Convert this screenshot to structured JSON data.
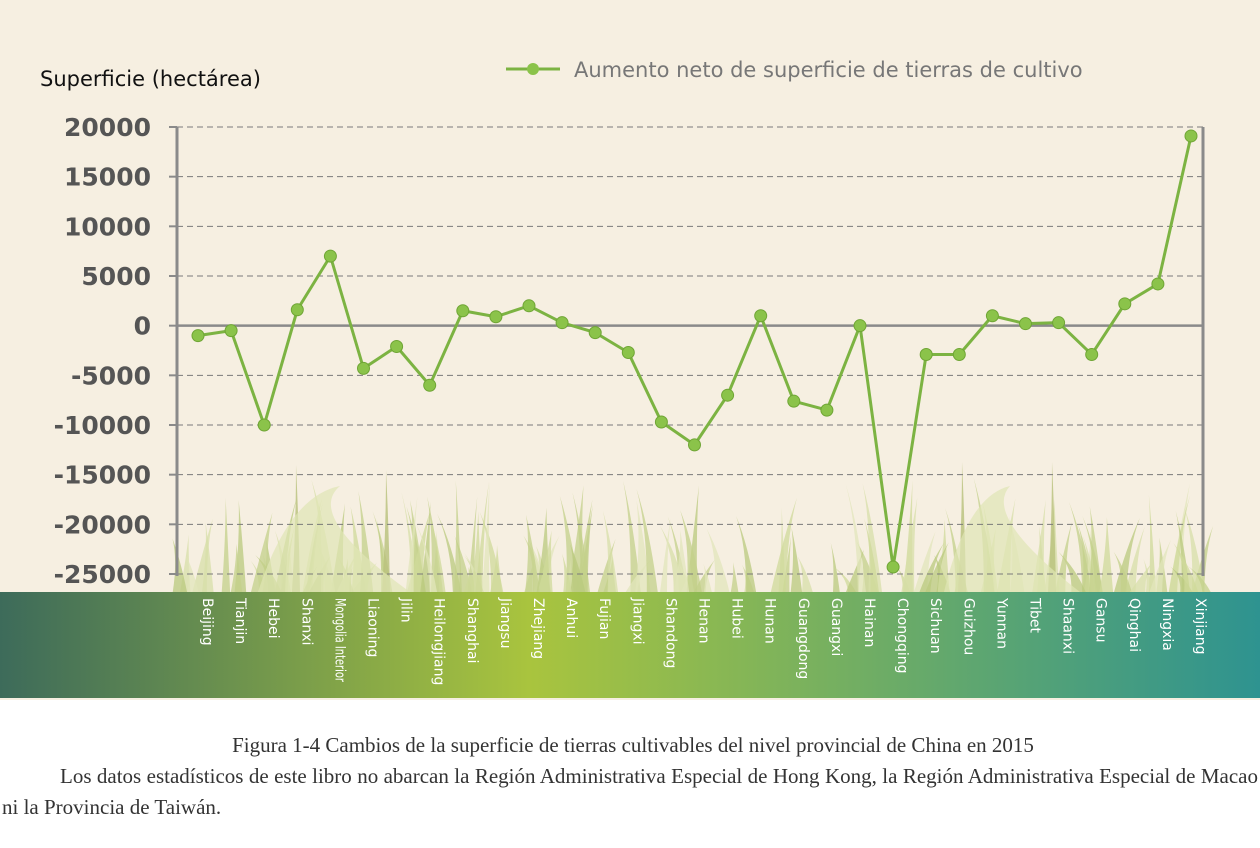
{
  "chart_data": {
    "type": "line",
    "ylabel": "Superficie (hectárea)",
    "legend": {
      "label": "Aumento neto de superficie de tierras de cultivo",
      "placement": "top"
    },
    "ylim": [
      -25000,
      20000
    ],
    "yticks": [
      20000,
      15000,
      10000,
      5000,
      0,
      -5000,
      -10000,
      -15000,
      -20000,
      -25000
    ],
    "ytick_labels": [
      "20000",
      "15000",
      "10000",
      "5000",
      "0",
      "-5000",
      "-10000",
      "-15000",
      "-20000",
      "-25000"
    ],
    "grid": "horizontal dashed",
    "categories": [
      "Beijing",
      "Tianjin",
      "Hebei",
      "Shanxi",
      "Mongolia Interior",
      "Liaoning",
      "Jilin",
      "Heilongjiang",
      "Shanghai",
      "Jiangsu",
      "Zhejiang",
      "Anhui",
      "Fujian",
      "Jiangxi",
      "Shandong",
      "Henan",
      "Hubei",
      "Hunan",
      "Guangdong",
      "Guangxi",
      "Hainan",
      "Chongqing",
      "Sichuan",
      "Guizhou",
      "Yunnan",
      "Tibet",
      "Shaanxi",
      "Gansu",
      "Qinghai",
      "Ningxia",
      "Xinjiang"
    ],
    "series": [
      {
        "name": "Aumento neto de superficie de tierras de cultivo",
        "values": [
          -1000,
          -500,
          -10000,
          1600,
          7000,
          -4300,
          -2100,
          -6000,
          1500,
          900,
          2000,
          300,
          -700,
          -2700,
          -9700,
          -12000,
          -7000,
          1000,
          -7600,
          -8500,
          0,
          -24300,
          -2900,
          -2900,
          1000,
          200,
          300,
          -2900,
          2200,
          4200,
          19100
        ]
      }
    ]
  },
  "colors": {
    "background": "#f6efe1",
    "line": "#7cb342",
    "marker": "#8bc34a",
    "grid": "#7a7a7a",
    "axis": "#8a8a8a",
    "band_left": "#3d6b5a",
    "band_mid": "#a9c43e",
    "band_right": "#2e9390"
  },
  "caption": {
    "title": "Figura 1-4 Cambios de la superficie de tierras cultivables del nivel provincial de China en 2015",
    "note": "Los datos estadísticos de este libro no abarcan la Región Administrativa Especial de Hong Kong, la Región Administrativa Especial de Macao ni la Provincia de Taiwán."
  }
}
